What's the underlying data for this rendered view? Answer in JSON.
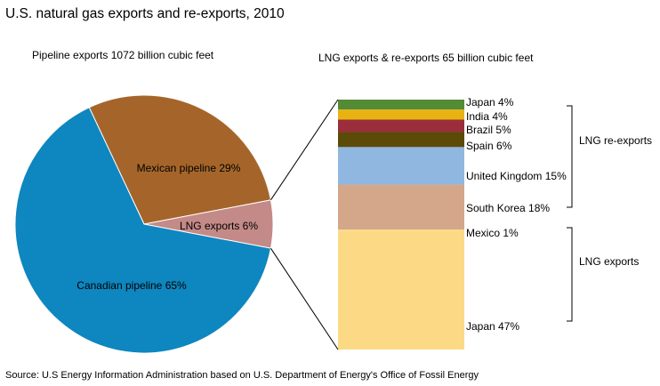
{
  "title": "U.S. natural gas exports and re-exports, 2010",
  "pie_subtitle": "Pipeline exports 1072  billion cubic feet",
  "bar_subtitle": "LNG exports & re-exports 65 billion cubic feet",
  "source": "Source: U.S Energy Information Administration based on U.S. Department of Energy's Office of Fossil Energy",
  "chart_data": [
    {
      "type": "pie",
      "slices": [
        {
          "label": "Mexican pipeline 29%",
          "value": 29,
          "color": "#a5652a"
        },
        {
          "label": "LNG exports 6%",
          "value": 6,
          "color": "#c48a88"
        },
        {
          "label": "Canadian pipeline 65%",
          "value": 65,
          "color": "#0e86bf"
        }
      ]
    },
    {
      "type": "bar",
      "stacked": true,
      "segments": [
        {
          "label": "Japan  4%",
          "value": 4,
          "color": "#548b35"
        },
        {
          "label": "India  4%",
          "value": 4,
          "color": "#e8b310"
        },
        {
          "label": "Brazil  5%",
          "value": 5,
          "color": "#9a2e3a"
        },
        {
          "label": "Spain  6%",
          "value": 6,
          "color": "#5b4a08"
        },
        {
          "label": "United Kingdom 15%",
          "value": 15,
          "color": "#8fb7e0"
        },
        {
          "label": "South Korea  18%",
          "value": 18,
          "color": "#d4a68a"
        },
        {
          "label": "Mexico 1%",
          "value": 1,
          "color": "#fcd985"
        },
        {
          "label": "Japan  47%",
          "value": 47,
          "color": "#fcd985"
        }
      ],
      "groups": [
        {
          "label": "LNG re-exports"
        },
        {
          "label": "LNG exports"
        }
      ]
    }
  ]
}
